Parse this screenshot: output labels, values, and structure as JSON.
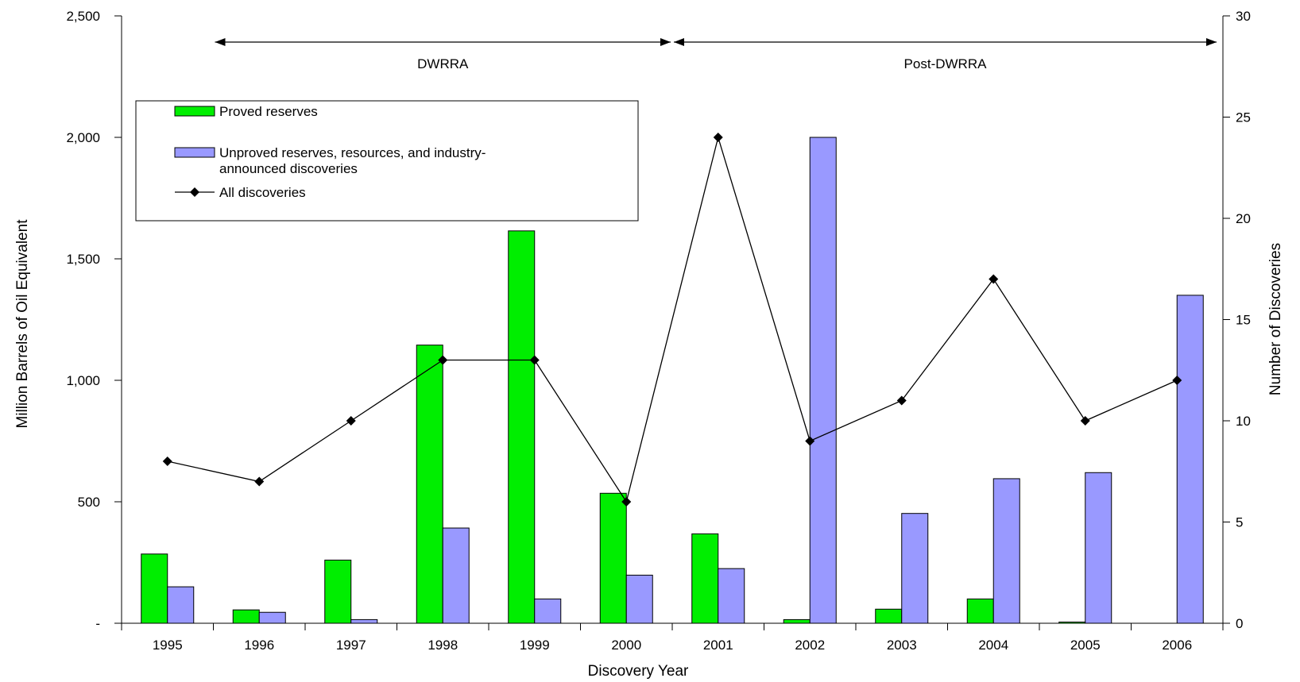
{
  "chart_data": {
    "type": "bar",
    "categories": [
      "1995",
      "1996",
      "1997",
      "1998",
      "1999",
      "2000",
      "2001",
      "2002",
      "2003",
      "2004",
      "2005",
      "2006"
    ],
    "series": [
      {
        "name": "Proved reserves",
        "kind": "bar",
        "axis": "left",
        "color": "#00ee00",
        "values": [
          285,
          55,
          260,
          1145,
          1615,
          535,
          368,
          15,
          58,
          100,
          5,
          0
        ]
      },
      {
        "name": "Unproved reserves, resources, and industry-announced discoveries",
        "kind": "bar",
        "axis": "left",
        "color": "#9999ff",
        "values": [
          150,
          45,
          15,
          392,
          100,
          198,
          225,
          2000,
          452,
          595,
          620,
          1350
        ]
      },
      {
        "name": "All discoveries",
        "kind": "line",
        "axis": "right",
        "color": "#000000",
        "marker": "diamond",
        "values": [
          8,
          7,
          10,
          13,
          13,
          6,
          24,
          9,
          11,
          17,
          10,
          12
        ]
      }
    ],
    "legend_labels": {
      "proved": "Proved reserves",
      "unproved_line1": "Unproved reserves, resources, and industry-",
      "unproved_line2": "announced discoveries",
      "all": "All discoveries"
    },
    "xlabel": "Discovery Year",
    "ylabel": "Million Barrels of Oil Equivalent",
    "y2label": "Number of Discoveries",
    "ylim": [
      0,
      2500
    ],
    "y2lim": [
      0,
      30
    ],
    "yticks": [
      {
        "value": 0,
        "label": "-"
      },
      {
        "value": 500,
        "label": "500"
      },
      {
        "value": 1000,
        "label": "1,000"
      },
      {
        "value": 1500,
        "label": "1,500"
      },
      {
        "value": 2000,
        "label": "2,000"
      },
      {
        "value": 2500,
        "label": "2,500"
      }
    ],
    "y2ticks": [
      {
        "value": 0,
        "label": "0"
      },
      {
        "value": 5,
        "label": "5"
      },
      {
        "value": 10,
        "label": "10"
      },
      {
        "value": 15,
        "label": "15"
      },
      {
        "value": 20,
        "label": "20"
      },
      {
        "value": 25,
        "label": "25"
      },
      {
        "value": 30,
        "label": "30"
      }
    ],
    "annotations": [
      {
        "text": "DWRRA",
        "from": "1996",
        "to": "2001"
      },
      {
        "text": "Post-DWRRA",
        "from": "2001",
        "to": "2006"
      }
    ],
    "grid": false,
    "legend_position": "top-left"
  }
}
